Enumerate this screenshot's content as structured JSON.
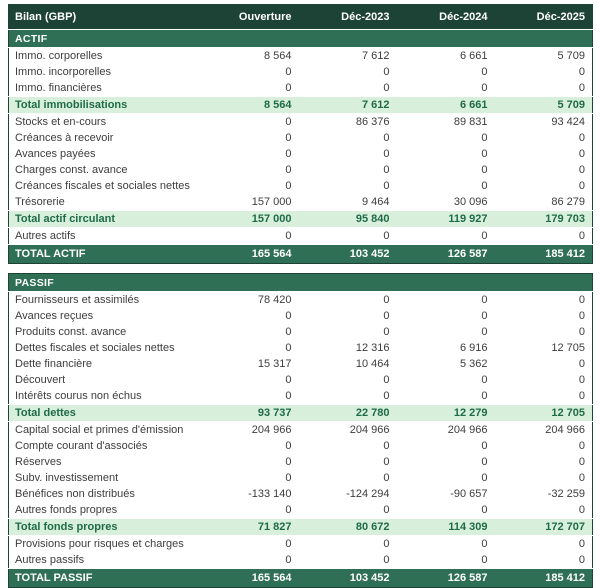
{
  "report": {
    "corner_label": "Bilan (GBP)",
    "columns": [
      "Ouverture",
      "Déc-2023",
      "Déc-2024",
      "Déc-2025"
    ],
    "sections": [
      {
        "name": "ACTIF",
        "rows": [
          {
            "type": "data",
            "label": "Immo. corporelles",
            "values": [
              "8 564",
              "7 612",
              "6 661",
              "5 709"
            ]
          },
          {
            "type": "data",
            "label": "Immo. incorporelles",
            "values": [
              "0",
              "0",
              "0",
              "0"
            ]
          },
          {
            "type": "data",
            "label": "Immo. financières",
            "values": [
              "0",
              "0",
              "0",
              "0"
            ]
          },
          {
            "type": "subtotal",
            "label": "Total immobilisations",
            "values": [
              "8 564",
              "7 612",
              "6 661",
              "5 709"
            ]
          },
          {
            "type": "data",
            "label": "Stocks et en-cours",
            "values": [
              "0",
              "86 376",
              "89 831",
              "93 424"
            ]
          },
          {
            "type": "data",
            "label": "Créances à recevoir",
            "values": [
              "0",
              "0",
              "0",
              "0"
            ]
          },
          {
            "type": "data",
            "label": "Avances payées",
            "values": [
              "0",
              "0",
              "0",
              "0"
            ]
          },
          {
            "type": "data",
            "label": "Charges const. avance",
            "values": [
              "0",
              "0",
              "0",
              "0"
            ]
          },
          {
            "type": "data",
            "label": "Créances fiscales et sociales nettes",
            "values": [
              "0",
              "0",
              "0",
              "0"
            ]
          },
          {
            "type": "data",
            "label": "Trésorerie",
            "values": [
              "157 000",
              "9 464",
              "30 096",
              "86 279"
            ]
          },
          {
            "type": "subtotal",
            "label": "Total actif circulant",
            "values": [
              "157 000",
              "95 840",
              "119 927",
              "179 703"
            ]
          },
          {
            "type": "data",
            "label": "Autres actifs",
            "values": [
              "0",
              "0",
              "0",
              "0"
            ]
          },
          {
            "type": "grandtotal",
            "label": "TOTAL ACTIF",
            "values": [
              "165 564",
              "103 452",
              "126 587",
              "185 412"
            ]
          }
        ]
      },
      {
        "name": "PASSIF",
        "rows": [
          {
            "type": "data",
            "label": "Fournisseurs et assimilés",
            "values": [
              "78 420",
              "0",
              "0",
              "0"
            ]
          },
          {
            "type": "data",
            "label": "Avances reçues",
            "values": [
              "0",
              "0",
              "0",
              "0"
            ]
          },
          {
            "type": "data",
            "label": "Produits const. avance",
            "values": [
              "0",
              "0",
              "0",
              "0"
            ]
          },
          {
            "type": "data",
            "label": "Dettes fiscales et sociales nettes",
            "values": [
              "0",
              "12 316",
              "6 916",
              "12 705"
            ]
          },
          {
            "type": "data",
            "label": "Dette financière",
            "values": [
              "15 317",
              "10 464",
              "5 362",
              "0"
            ]
          },
          {
            "type": "data",
            "label": "Découvert",
            "values": [
              "0",
              "0",
              "0",
              "0"
            ]
          },
          {
            "type": "data",
            "label": "Intérêts courus non échus",
            "values": [
              "0",
              "0",
              "0",
              "0"
            ]
          },
          {
            "type": "subtotal",
            "label": "Total dettes",
            "values": [
              "93 737",
              "22 780",
              "12 279",
              "12 705"
            ]
          },
          {
            "type": "data",
            "label": "Capital social et primes d'émission",
            "values": [
              "204 966",
              "204 966",
              "204 966",
              "204 966"
            ]
          },
          {
            "type": "data",
            "label": "Compte courant d'associés",
            "values": [
              "0",
              "0",
              "0",
              "0"
            ]
          },
          {
            "type": "data",
            "label": "Réserves",
            "values": [
              "0",
              "0",
              "0",
              "0"
            ]
          },
          {
            "type": "data",
            "label": "Subv. investissement",
            "values": [
              "0",
              "0",
              "0",
              "0"
            ]
          },
          {
            "type": "data",
            "label": "Bénéfices non distribués",
            "values": [
              "-133 140",
              "-124 294",
              "-90 657",
              "-32 259"
            ]
          },
          {
            "type": "data",
            "label": "Autres fonds propres",
            "values": [
              "0",
              "0",
              "0",
              "0"
            ]
          },
          {
            "type": "subtotal",
            "label": "Total fonds propres",
            "values": [
              "71 827",
              "80 672",
              "114 309",
              "172 707"
            ]
          },
          {
            "type": "data",
            "label": "Provisions pour risques et charges",
            "values": [
              "0",
              "0",
              "0",
              "0"
            ]
          },
          {
            "type": "data",
            "label": "Autres passifs",
            "values": [
              "0",
              "0",
              "0",
              "0"
            ]
          },
          {
            "type": "grandtotal",
            "label": "TOTAL PASSIF",
            "values": [
              "165 564",
              "103 452",
              "126 587",
              "185 412"
            ]
          }
        ]
      }
    ],
    "colors": {
      "header_bg": "#1d4336",
      "section_bg": "#2f6f56",
      "subtotal_bg": "#d8efdc",
      "subtotal_text": "#1e6b48",
      "grandtotal_bg": "#2f6f56",
      "body_text": "#3d3d3d",
      "border": "#1d4336"
    }
  }
}
